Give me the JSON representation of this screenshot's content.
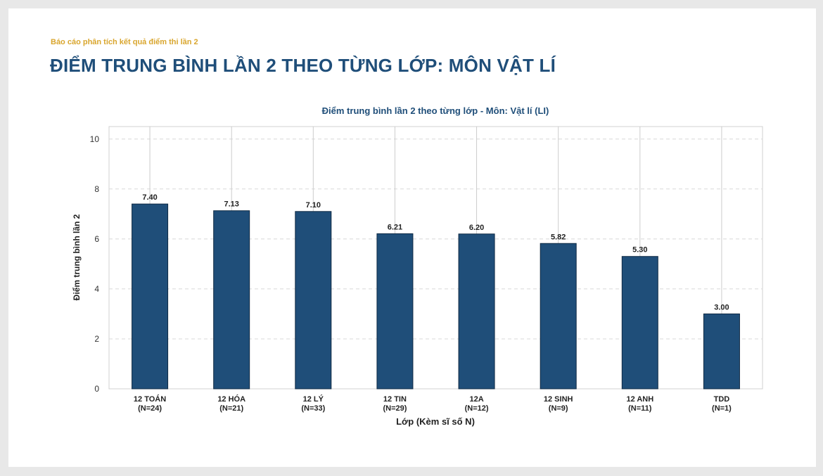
{
  "report": {
    "label": "Báo cáo phân tích kết quả điểm thi lần 2",
    "title": "ĐIỂM TRUNG BÌNH LẦN 2 THEO TỪNG LỚP: MÔN VẬT LÍ"
  },
  "colors": {
    "bar": "#1f4e79",
    "accent": "#d9a62e",
    "title": "#1f4e79"
  },
  "chart_data": {
    "type": "bar",
    "title": "Điểm trung bình lần 2 theo từng lớp - Môn: Vật lí (LI)",
    "xlabel": "Lớp (Kèm sĩ số N)",
    "ylabel": "Điểm trung bình lần 2",
    "ylim": [
      0,
      10.5
    ],
    "yticks": [
      0,
      2,
      4,
      6,
      8,
      10
    ],
    "grid": true,
    "categories": [
      "12 TOÁN",
      "12 HÓA",
      "12 LÝ",
      "12 TIN",
      "12A",
      "12 SINH",
      "12 ANH",
      "TDD"
    ],
    "sublabels": [
      "(N=24)",
      "(N=21)",
      "(N=33)",
      "(N=29)",
      "(N=12)",
      "(N=9)",
      "(N=11)",
      "(N=1)"
    ],
    "values": [
      7.4,
      7.13,
      7.1,
      6.21,
      6.2,
      5.82,
      5.3,
      3.0
    ],
    "value_labels": [
      "7.40",
      "7.13",
      "7.10",
      "6.21",
      "6.20",
      "5.82",
      "5.30",
      "3.00"
    ]
  }
}
